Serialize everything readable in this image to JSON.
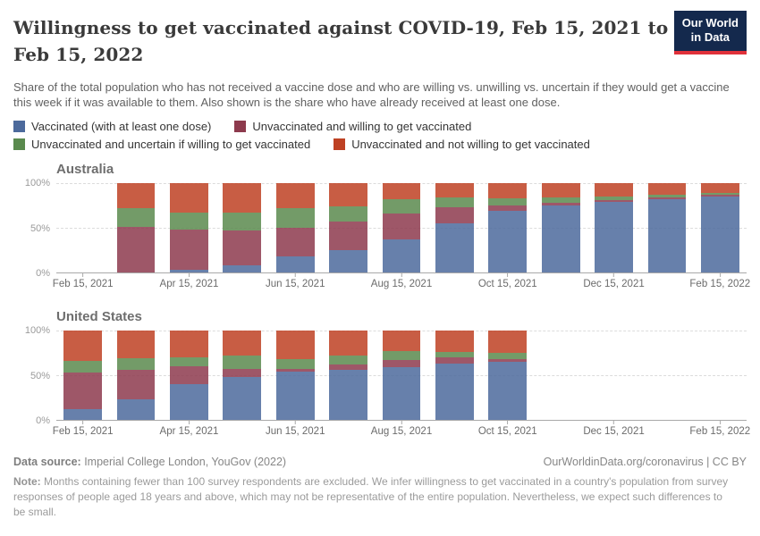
{
  "logo": {
    "line1": "Our World",
    "line2": "in Data"
  },
  "header": {
    "title": "Willingness to get vaccinated against COVID-19, Feb 15, 2021 to Feb 15, 2022",
    "subtitle": "Share of the total population who has not received a vaccine dose and who are willing vs. unwilling vs. uncertain if they would get a vaccine this week if it was available to them. Also shown is the share who have already received at least one dose."
  },
  "colors": {
    "vaccinated": "#4C6A9C",
    "willing": "#8D3A4D",
    "uncertain": "#5A8A4E",
    "not_willing": "#BE4123"
  },
  "legend": [
    {
      "label": "Vaccinated (with at least one dose)",
      "color": "#4C6A9C"
    },
    {
      "label": "Unvaccinated and willing to get vaccinated",
      "color": "#8D3A4D"
    },
    {
      "label": "Unvaccinated and uncertain if willing to get vaccinated",
      "color": "#5A8A4E"
    },
    {
      "label": "Unvaccinated and not willing to get vaccinated",
      "color": "#BE4123"
    }
  ],
  "chart_data": [
    {
      "type": "bar",
      "stacked": true,
      "title": "Australia",
      "ylabel": "",
      "ylim": [
        0,
        100
      ],
      "y_tick_labels": [
        "100%",
        "50%",
        "0%"
      ],
      "grid": "dashed horizontal at 50% and 100%",
      "slots": 13,
      "first_slot": 1,
      "x_ticks": [
        {
          "label": "Feb 15, 2021",
          "slot": 0
        },
        {
          "label": "Apr 15, 2021",
          "slot": 2
        },
        {
          "label": "Jun 15, 2021",
          "slot": 4
        },
        {
          "label": "Aug 15, 2021",
          "slot": 6
        },
        {
          "label": "Oct 15, 2021",
          "slot": 8
        },
        {
          "label": "Dec 15, 2021",
          "slot": 10
        },
        {
          "label": "Feb 15, 2022",
          "slot": 12
        }
      ],
      "categories": [
        "Mar 15, 2021",
        "Apr 15, 2021",
        "May 15, 2021",
        "Jun 15, 2021",
        "Jul 15, 2021",
        "Aug 15, 2021",
        "Sep 15, 2021",
        "Oct 15, 2021",
        "Nov 15, 2021",
        "Dec 15, 2021",
        "Jan 15, 2022",
        "Feb 15, 2022"
      ],
      "series": [
        {
          "name": "Vaccinated (with at least one dose)",
          "color": "#4C6A9C",
          "values": [
            0,
            3,
            8,
            18,
            25,
            37,
            55,
            69,
            75,
            79,
            82,
            85
          ]
        },
        {
          "name": "Unvaccinated and willing to get vaccinated",
          "color": "#8D3A4D",
          "values": [
            51,
            45,
            39,
            32,
            32,
            29,
            18,
            6,
            3,
            2,
            2,
            2
          ]
        },
        {
          "name": "Unvaccinated and uncertain if willing to get vaccinated",
          "color": "#5A8A4E",
          "values": [
            21,
            19,
            20,
            22,
            17,
            16,
            11,
            8,
            6,
            4,
            3,
            2
          ]
        },
        {
          "name": "Unvaccinated and not willing to get vaccinated",
          "color": "#BE4123",
          "values": [
            28,
            33,
            33,
            28,
            26,
            18,
            16,
            17,
            16,
            15,
            13,
            11
          ]
        }
      ]
    },
    {
      "type": "bar",
      "stacked": true,
      "title": "United States",
      "ylabel": "",
      "ylim": [
        0,
        100
      ],
      "y_tick_labels": [
        "100%",
        "50%",
        "0%"
      ],
      "grid": "dashed horizontal at 50% and 100%",
      "slots": 13,
      "first_slot": 0,
      "x_ticks": [
        {
          "label": "Feb 15, 2021",
          "slot": 0
        },
        {
          "label": "Apr 15, 2021",
          "slot": 2
        },
        {
          "label": "Jun 15, 2021",
          "slot": 4
        },
        {
          "label": "Aug 15, 2021",
          "slot": 6
        },
        {
          "label": "Oct 15, 2021",
          "slot": 8
        },
        {
          "label": "Dec 15, 2021",
          "slot": 10
        },
        {
          "label": "Feb 15, 2022",
          "slot": 12
        }
      ],
      "categories": [
        "Feb 15, 2021",
        "Mar 15, 2021",
        "Apr 15, 2021",
        "May 15, 2021",
        "Jun 15, 2021",
        "Jul 15, 2021",
        "Aug 15, 2021",
        "Sep 15, 2021",
        "Oct 15, 2021"
      ],
      "series": [
        {
          "name": "Vaccinated (with at least one dose)",
          "color": "#4C6A9C",
          "values": [
            12,
            23,
            40,
            48,
            54,
            56,
            59,
            63,
            65
          ]
        },
        {
          "name": "Unvaccinated and willing to get vaccinated",
          "color": "#8D3A4D",
          "values": [
            41,
            33,
            20,
            9,
            3,
            6,
            8,
            7,
            3
          ]
        },
        {
          "name": "Unvaccinated and uncertain if willing to get vaccinated",
          "color": "#5A8A4E",
          "values": [
            13,
            13,
            10,
            15,
            11,
            10,
            10,
            6,
            7
          ]
        },
        {
          "name": "Unvaccinated and not willing to get vaccinated",
          "color": "#BE4123",
          "values": [
            34,
            31,
            30,
            28,
            32,
            28,
            23,
            24,
            25
          ]
        }
      ]
    }
  ],
  "footer": {
    "data_source_label": "Data source:",
    "data_source": " Imperial College London, YouGov (2022)",
    "link": "OurWorldinData.org/coronavirus | CC BY",
    "note_label": "Note:",
    "note": " Months containing fewer than 100 survey respondents are excluded. We infer willingness to get vaccinated in a country's population from survey responses of people aged 18 years and above, which may not be representative of the entire population. Nevertheless, we expect such differences to be small."
  }
}
